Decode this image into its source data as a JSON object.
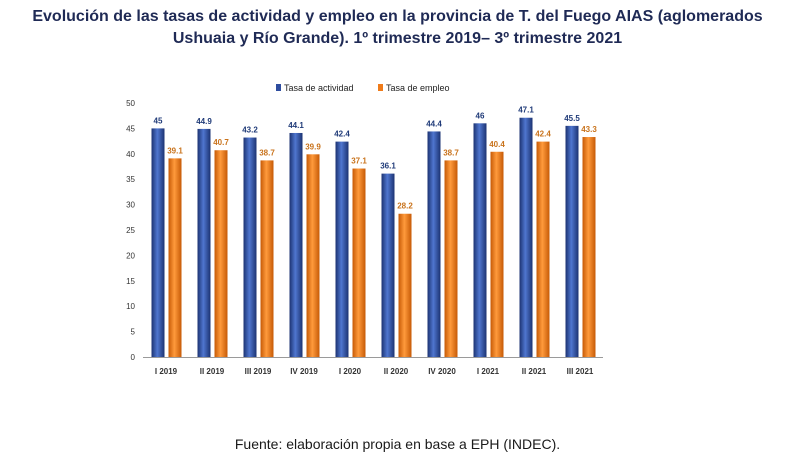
{
  "title_line1": "Evolución de las tasas de actividad y empleo en la provincia de T. del Fuego AIAS (aglomerados",
  "title_line2": "Ushuaia y Río Grande). 1º trimestre 2019– 3º trimestre 2021",
  "source": "Fuente: elaboración propia en base a EPH (INDEC).",
  "colors": {
    "actividad": "#2e4d9f",
    "empleo": "#ef7b1a",
    "actividad_label": "#1f3a78",
    "empleo_label": "#c9731c"
  },
  "chart_data": {
    "type": "bar",
    "categories": [
      "I 2019",
      "II 2019",
      "III 2019",
      "IV 2019",
      "I 2020",
      "II 2020",
      "IV 2020",
      "I 2021",
      "II 2021",
      "III 2021"
    ],
    "series": [
      {
        "name": "Tasa de actividad",
        "values": [
          45,
          44.9,
          43.2,
          44.1,
          42.4,
          36.1,
          44.4,
          46,
          47.1,
          45.5
        ]
      },
      {
        "name": "Tasa de empleo",
        "values": [
          39.1,
          40.7,
          38.7,
          39.9,
          37.1,
          28.2,
          38.7,
          40.4,
          42.4,
          43.3
        ]
      }
    ],
    "value_labels": [
      [
        "45",
        "44.9",
        "43.2",
        "44.1",
        "42.4",
        "36.1",
        "44.4",
        "46",
        "47.1",
        "45.5"
      ],
      [
        "39.1",
        "40.7",
        "38.7",
        "39.9",
        "37.1",
        "28.2",
        "38.7",
        "40.4",
        "42.4",
        "43.3"
      ]
    ],
    "yticks": [
      "0",
      "5",
      "10",
      "15",
      "20",
      "25",
      "30",
      "35",
      "40",
      "45",
      "50"
    ],
    "ylim": [
      0,
      50
    ],
    "legend_position": "top-center",
    "grid": false
  }
}
